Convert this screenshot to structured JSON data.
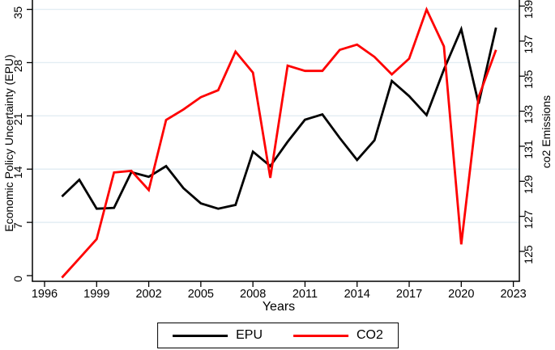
{
  "chart_data": {
    "type": "line",
    "title": "",
    "xlabel": "Years",
    "ylabel_left": "Economic Policy Uncertainty (EPU)",
    "ylabel_right": "co2 Emissions",
    "x": [
      1997,
      1998,
      1999,
      2000,
      2001,
      2002,
      2003,
      2004,
      2005,
      2006,
      2007,
      2008,
      2009,
      2010,
      2011,
      2012,
      2013,
      2014,
      2015,
      2016,
      2017,
      2018,
      2019,
      2020,
      2021,
      2022
    ],
    "series": [
      {
        "name": "EPU",
        "axis": "left",
        "color": "#000000",
        "values": [
          10.4,
          12.6,
          8.8,
          8.9,
          13.6,
          13.0,
          14.4,
          11.5,
          9.5,
          8.8,
          9.3,
          16.3,
          14.4,
          17.6,
          20.5,
          21.2,
          18.1,
          15.2,
          17.8,
          25.6,
          23.6,
          21.1,
          27.1,
          32.4,
          22.6,
          32.6
        ]
      },
      {
        "name": "CO2",
        "axis": "right",
        "color": "#fe0000",
        "values": [
          123.5,
          124.6,
          125.7,
          129.5,
          129.6,
          128.5,
          132.5,
          133.1,
          133.8,
          134.2,
          136.4,
          135.2,
          129.2,
          135.6,
          135.3,
          135.3,
          136.5,
          136.8,
          136.1,
          135.1,
          136.0,
          138.8,
          136.7,
          125.4,
          133.8,
          136.5
        ]
      }
    ],
    "x_ticks": [
      1996,
      1999,
      2002,
      2005,
      2008,
      2011,
      2014,
      2017,
      2020,
      2023
    ],
    "left_axis": {
      "ticks": [
        0,
        7,
        14,
        21,
        28,
        35
      ],
      "range": [
        0,
        35
      ]
    },
    "right_axis": {
      "ticks": [
        125,
        127,
        129,
        131,
        133,
        135,
        137,
        139
      ],
      "range": [
        123.3,
        139.2
      ]
    },
    "x_range": [
      1996,
      2023
    ],
    "grid": "horizontal gridlines at left-axis ticks 7-35, light blue",
    "grid_color": "#e2edf3",
    "legend_position": "bottom-center",
    "legend_entries": [
      "EPU",
      "CO2"
    ]
  },
  "colors": {
    "epu_line": "#000000",
    "co2_line": "#fe0000",
    "axis": "#000000",
    "gridline": "#e2edf3",
    "background": "#ffffff"
  }
}
